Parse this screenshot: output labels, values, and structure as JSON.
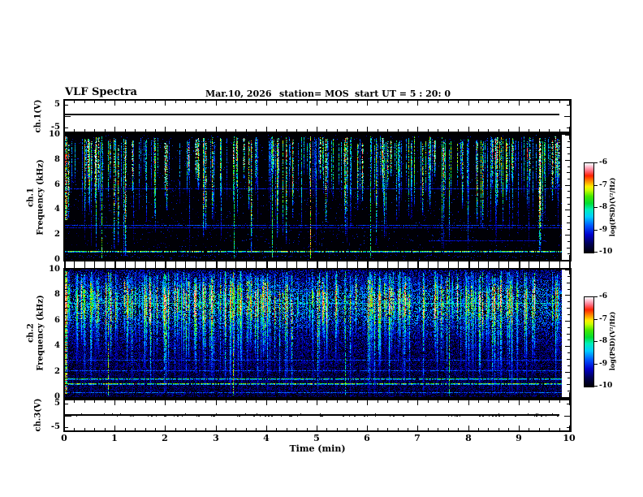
{
  "header": {
    "title": "VLF Spectra",
    "date": "Mar.10, 2026",
    "station": "station= MOS",
    "start_ut": "start UT =  5 : 20: 0"
  },
  "axes": {
    "x": {
      "label": "Time (min)",
      "min": 0,
      "max": 10,
      "tick_labels": [
        "0",
        "1",
        "2",
        "3",
        "4",
        "5",
        "6",
        "7",
        "8",
        "9",
        "10"
      ]
    },
    "spec_y": {
      "label": "Frequency (kHz)",
      "min": 0,
      "max": 10,
      "tick_labels": [
        "10",
        "8",
        "6",
        "4",
        "2",
        "0"
      ]
    },
    "volt_y": {
      "min": -5,
      "max": 5,
      "tick_labels": [
        "5",
        "-5"
      ]
    }
  },
  "panels": {
    "ch1_wave": {
      "label": "ch.1(V)"
    },
    "spec1": {
      "channel": "ch.1",
      "ylabel": "Frequency (kHz)"
    },
    "spec2": {
      "channel": "ch.2",
      "ylabel": "Frequency (kHz)"
    },
    "ch3_wave": {
      "label": "ch.3(V)"
    }
  },
  "colorbar": {
    "unit": "log(PSD)(V²/Hz)",
    "tick_labels": [
      "-6",
      "-7",
      "-8",
      "-9",
      "-10"
    ],
    "vmax": -6,
    "vmin": -10,
    "stops": [
      [
        0.0,
        "#000006"
      ],
      [
        0.1,
        "#000055"
      ],
      [
        0.2,
        "#0000cc"
      ],
      [
        0.3,
        "#0055ff"
      ],
      [
        0.4,
        "#00ccff"
      ],
      [
        0.48,
        "#00eebb"
      ],
      [
        0.55,
        "#00dd33"
      ],
      [
        0.63,
        "#44e800"
      ],
      [
        0.7,
        "#ccff00"
      ],
      [
        0.74,
        "#ffee00"
      ],
      [
        0.8,
        "#ff8800"
      ],
      [
        0.86,
        "#ff2200"
      ],
      [
        0.91,
        "#ff6677"
      ],
      [
        0.96,
        "#ffbbcc"
      ],
      [
        1.0,
        "#ffffff"
      ]
    ]
  },
  "chart_data": [
    {
      "type": "line",
      "panel": "ch1v",
      "ylabel": "ch.1(V)",
      "ylim": [
        -6.6,
        6.6
      ],
      "yticks": [
        5,
        0,
        -5
      ],
      "value": 0.6,
      "x_start_min": 0,
      "x_end_min": 9.82,
      "blips": false,
      "seed": 3
    },
    {
      "type": "heatmap",
      "panel": "spec1",
      "channel": "ch.1",
      "ylabel": "Frequency (kHz)",
      "xlim": [
        0,
        10
      ],
      "ylim": [
        0,
        10
      ],
      "zlim": [
        -10,
        -6
      ],
      "style": "impulsive-dark",
      "seed": 1337,
      "noise": {
        "density": 0.02,
        "tmin": 0.08,
        "tmax": 0.28
      },
      "streaks": {
        "count": 235,
        "top_khz": [
          9.25,
          9.85
        ],
        "intensity": [
          0.28,
          1.0
        ],
        "red_fraction": 0.07
      },
      "tall_streaks": [
        {
          "x": 0.72,
          "s": 0.55
        },
        {
          "x": 3.35,
          "s": 0.5
        },
        {
          "x": 4.1,
          "s": 0.52
        },
        {
          "x": 4.85,
          "s": 0.78
        },
        {
          "x": 6.05,
          "s": 0.5
        }
      ],
      "hlines": [
        {
          "f": 0.65,
          "s": 0.62
        },
        {
          "f": 2.55,
          "s": 0.2
        },
        {
          "f": 2.75,
          "s": 0.26
        },
        {
          "f": 5.7,
          "s": 0.22
        },
        {
          "f": 1.5,
          "s": 0.2,
          "x0": 7.2,
          "x1": 9.5
        }
      ],
      "edge_burst": true
    },
    {
      "type": "heatmap",
      "panel": "spec2",
      "channel": "ch.2",
      "ylabel": "Frequency (kHz)",
      "xlim": [
        0,
        10
      ],
      "ylim": [
        0,
        10
      ],
      "zlim": [
        -10,
        -6
      ],
      "style": "noisy-blue",
      "seed": 777,
      "background_band": {
        "center_khz": 7.3,
        "sigma_khz": 2.1,
        "amp": 1.25
      },
      "streaks": {
        "count": 260,
        "core_khz": [
          5.6,
          9.2
        ],
        "intensity": [
          0.3,
          1.0
        ],
        "red_fraction": 0.1
      },
      "tall_streaks": [
        {
          "x": 0.85,
          "s": 0.62
        },
        {
          "x": 3.33,
          "s": 0.66
        },
        {
          "x": 5.55,
          "s": 0.5
        },
        {
          "x": 7.6,
          "s": 0.55
        }
      ],
      "hlines": [
        {
          "f": 0.35,
          "s": 0.3
        },
        {
          "f": 1.05,
          "s": 0.6
        },
        {
          "f": 1.4,
          "s": 0.52
        },
        {
          "f": 2.05,
          "s": 0.28
        },
        {
          "f": 2.9,
          "s": 0.26
        },
        {
          "f": 7.35,
          "s": 0.45
        }
      ],
      "edge_burst": true
    },
    {
      "type": "line",
      "panel": "ch3v",
      "ylabel": "ch.3(V)",
      "ylim": [
        -6.6,
        6.6
      ],
      "yticks": [
        5,
        0,
        -5
      ],
      "value": 0.1,
      "x_start_min": 0,
      "x_end_min": 9.82,
      "blips": true,
      "seed": 5
    }
  ]
}
